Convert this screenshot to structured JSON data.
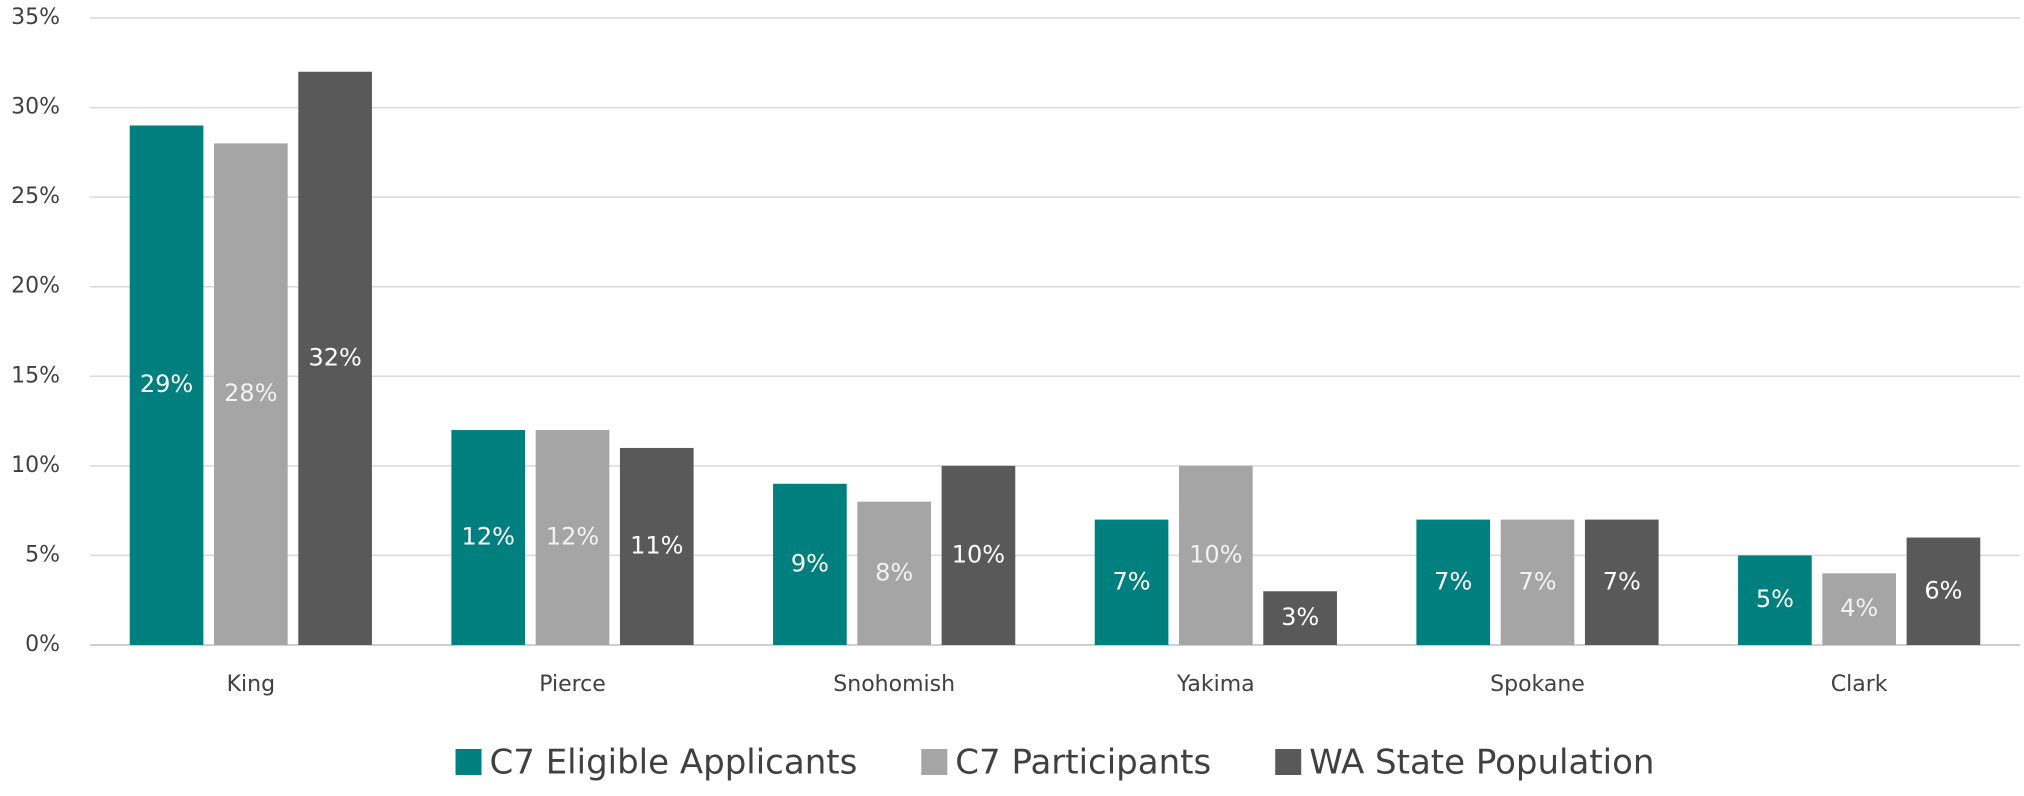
{
  "chart_data": {
    "type": "bar",
    "categories": [
      "King",
      "Pierce",
      "Snohomish",
      "Yakima",
      "Spokane",
      "Clark"
    ],
    "series": [
      {
        "name": "C7 Eligible Applicants",
        "color": "#007f7f",
        "values": [
          29,
          12,
          9,
          7,
          7,
          5
        ],
        "value_labels": [
          "29%",
          "12%",
          "9%",
          "7%",
          "7%",
          "5%"
        ]
      },
      {
        "name": "C7 Participants",
        "color": "#a5a5a5",
        "values": [
          28,
          12,
          8,
          10,
          7,
          4
        ],
        "value_labels": [
          "28%",
          "12%",
          "8%",
          "10%",
          "7%",
          "4%"
        ]
      },
      {
        "name": "WA State Population",
        "color": "#595959",
        "values": [
          32,
          11,
          10,
          3,
          7,
          6
        ],
        "value_labels": [
          "32%",
          "11%",
          "10%",
          "3%",
          "7%",
          "6%"
        ]
      }
    ],
    "ylim": [
      0,
      35
    ],
    "yticks": [
      {
        "value": 0,
        "label": "0%"
      },
      {
        "value": 5,
        "label": "5%"
      },
      {
        "value": 10,
        "label": "10%"
      },
      {
        "value": 15,
        "label": "15%"
      },
      {
        "value": 20,
        "label": "20%"
      },
      {
        "value": 25,
        "label": "25%"
      },
      {
        "value": 30,
        "label": "30%"
      },
      {
        "value": 35,
        "label": "35%"
      }
    ],
    "grid": true,
    "legend": "bottom"
  }
}
